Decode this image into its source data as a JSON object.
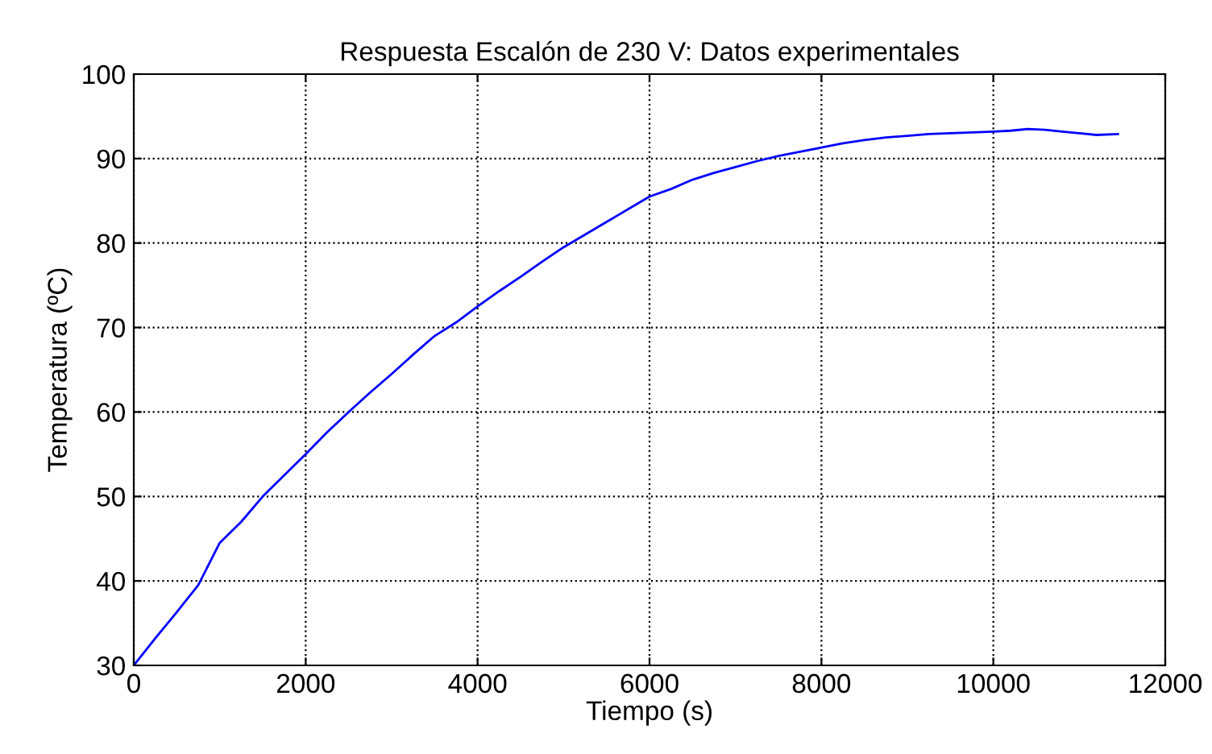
{
  "chart_data": {
    "type": "line",
    "title": "Respuesta Escalón de 230 V: Datos experimentales",
    "xlabel": "Tiempo (s)",
    "ylabel": "Temperatura (ºC)",
    "x": [
      0,
      250,
      500,
      750,
      1000,
      1250,
      1500,
      1750,
      2000,
      2250,
      2500,
      2750,
      3000,
      3250,
      3500,
      3750,
      4000,
      4250,
      4500,
      4750,
      5000,
      5250,
      5500,
      5750,
      6000,
      6250,
      6500,
      6750,
      7000,
      7250,
      7500,
      7750,
      8000,
      8250,
      8500,
      8750,
      9000,
      9250,
      9500,
      9750,
      10000,
      10200,
      10400,
      10600,
      10800,
      11000,
      11200,
      11450
    ],
    "series": [
      {
        "color": "#0000ff",
        "values": [
          30,
          33.2,
          36.3,
          39.5,
          44.5,
          47,
          50,
          52.5,
          55,
          57.6,
          60,
          62.3,
          64.5,
          66.8,
          69,
          70.6,
          72.5,
          74.3,
          76,
          77.8,
          79.5,
          81,
          82.5,
          84,
          85.5,
          86.4,
          87.5,
          88.3,
          89,
          89.7,
          90.3,
          90.8,
          91.3,
          91.8,
          92.2,
          92.5,
          92.7,
          92.9,
          93,
          93.1,
          93.2,
          93.3,
          93.5,
          93.4,
          93.2,
          93.0,
          92.8,
          92.9
        ]
      }
    ],
    "xlim": [
      0,
      12000
    ],
    "ylim": [
      30,
      100
    ],
    "xticks": [
      0,
      2000,
      4000,
      6000,
      8000,
      10000,
      12000
    ],
    "yticks": [
      30,
      40,
      50,
      60,
      70,
      80,
      90,
      100
    ],
    "grid": true,
    "line_style": "solid"
  }
}
